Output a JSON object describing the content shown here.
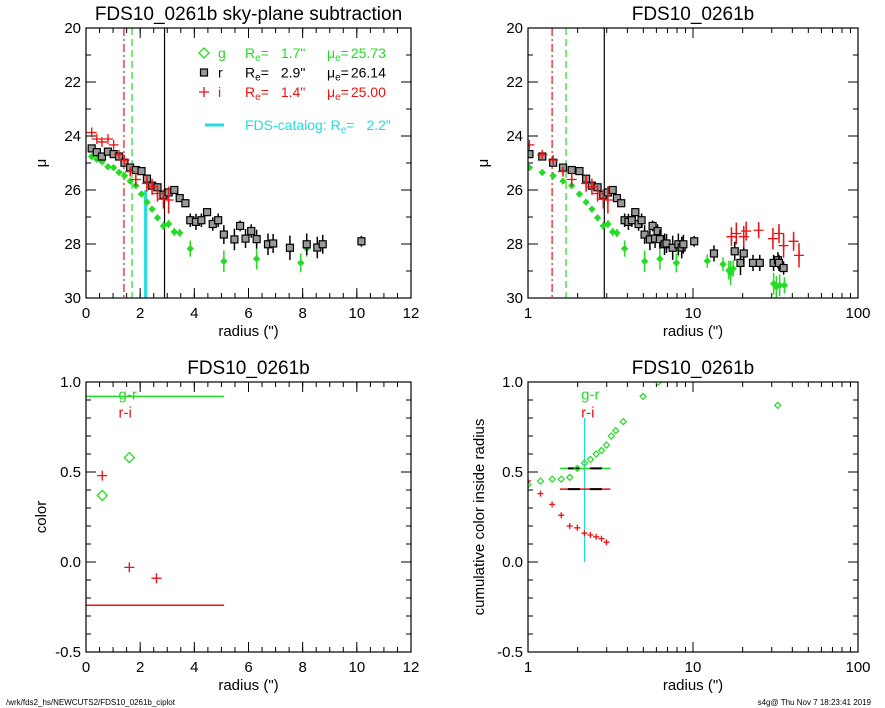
{
  "colors": {
    "g": "#22dd22",
    "r": "#000000",
    "i": "#ee1111",
    "catalog": "#22dddd"
  },
  "footer": {
    "left": "/wrk/fds2_hs/NEWCUTS2/FDS10_0261b_ciplot",
    "right": "s4g@  Thu Nov  7 18:23:41 2019"
  },
  "legend": {
    "re_symbol": "R",
    "mu_symbol": "μ",
    "sub": "e",
    "eq": "=",
    "entries": [
      {
        "band": "g",
        "symbol": "diamond",
        "re": "1.7\"",
        "mu": "25.73",
        "color": "#22dd22"
      },
      {
        "band": "r",
        "symbol": "square",
        "re": "2.9\"",
        "mu": "26.14",
        "color": "#000000"
      },
      {
        "band": "i",
        "symbol": "plus",
        "re": "1.4\"",
        "mu": "25.00",
        "color": "#ee1111"
      }
    ],
    "catalog_label": "FDS-catalog: R",
    "catalog_re": "2.2\""
  },
  "chart_data": [
    {
      "type": "scatter",
      "title": "FDS10_0261b sky-plane subtraction",
      "xlabel": "radius (\")",
      "ylabel": "μ",
      "xscale": "linear",
      "xlim": [
        0,
        12
      ],
      "xticks": [
        0,
        2,
        4,
        6,
        8,
        10,
        12
      ],
      "ylim": [
        20,
        30
      ],
      "y_reversed": true,
      "yticks": [
        20,
        22,
        24,
        26,
        28,
        30
      ],
      "series_ref": "profiles",
      "vlines": [
        {
          "x": 1.4,
          "color": "#ee1111",
          "style": "dashdot",
          "from": 20,
          "to": 30
        },
        {
          "x": 1.7,
          "color": "#22dd22",
          "style": "dashed",
          "from": 20,
          "to": 30
        },
        {
          "x": 2.9,
          "color": "#000000",
          "style": "solid",
          "from": 20,
          "to": 30
        },
        {
          "x": 2.2,
          "color": "#22dddd",
          "style": "thick",
          "from": 26.0,
          "to": 30
        }
      ],
      "legend": "top-right"
    },
    {
      "type": "scatter",
      "title": "FDS10_0261b",
      "xlabel": "radius (\")",
      "ylabel": "μ",
      "xscale": "log",
      "xlim": [
        1,
        100
      ],
      "xticks": [
        1,
        10,
        100
      ],
      "ylim": [
        20,
        30
      ],
      "y_reversed": true,
      "yticks": [
        20,
        22,
        24,
        26,
        28,
        30
      ],
      "series_ref": "profiles",
      "vlines": [
        {
          "x": 1.4,
          "color": "#ee1111",
          "style": "dashdot",
          "from": 20,
          "to": 30
        },
        {
          "x": 1.7,
          "color": "#22dd22",
          "style": "dashed",
          "from": 20,
          "to": 30
        },
        {
          "x": 2.9,
          "color": "#000000",
          "style": "solid",
          "from": 20,
          "to": 30
        }
      ]
    },
    {
      "type": "scatter",
      "title": "FDS10_0261b",
      "xlabel": "radius (\")",
      "ylabel": "color",
      "xscale": "linear",
      "xlim": [
        0,
        12
      ],
      "xticks": [
        0,
        2,
        4,
        6,
        8,
        10,
        12
      ],
      "ylim": [
        -0.5,
        1.0
      ],
      "y_reversed": false,
      "yticks": [
        "-0.5",
        "0.0",
        "0.5",
        "1.0"
      ],
      "series": [
        {
          "name": "g-r",
          "symbol": "diamond",
          "color": "#22dd22",
          "points": [
            [
              0.6,
              0.37
            ],
            [
              1.6,
              0.58
            ]
          ]
        },
        {
          "name": "r-i",
          "symbol": "plus",
          "color": "#ee1111",
          "points": [
            [
              0.6,
              0.48
            ],
            [
              1.6,
              -0.03
            ],
            [
              2.6,
              -0.09
            ]
          ]
        }
      ],
      "hlines": [
        {
          "y": 0.92,
          "x0": 0,
          "x1": 5.1,
          "color": "#22dd22"
        },
        {
          "y": -0.24,
          "x0": 0,
          "x1": 5.1,
          "color": "#ee1111"
        }
      ],
      "labels": [
        {
          "text": "g-r",
          "x": 1.2,
          "y": 0.93,
          "color": "#22dd22"
        },
        {
          "text": "r-i",
          "x": 1.2,
          "y": 0.83,
          "color": "#ee1111"
        }
      ]
    },
    {
      "type": "scatter",
      "title": "FDS10_0261b",
      "xlabel": "radius (\")",
      "ylabel": "cumulative color inside radius",
      "xscale": "log",
      "xlim": [
        1,
        100
      ],
      "xticks": [
        1,
        10,
        100
      ],
      "ylim": [
        -0.5,
        1.0
      ],
      "y_reversed": false,
      "yticks": [
        "-0.5",
        "0.0",
        "0.5",
        "1.0"
      ],
      "series": [
        {
          "name": "g-r",
          "symbol": "smalldiamond",
          "color": "#22dd22",
          "points": [
            [
              1.0,
              0.43
            ],
            [
              1.19,
              0.45
            ],
            [
              1.4,
              0.46
            ],
            [
              1.59,
              0.46
            ],
            [
              1.79,
              0.47
            ],
            [
              1.99,
              0.52
            ],
            [
              2.2,
              0.55
            ],
            [
              2.39,
              0.57
            ],
            [
              2.59,
              0.6
            ],
            [
              2.79,
              0.62
            ],
            [
              2.99,
              0.65
            ],
            [
              3.2,
              0.7
            ],
            [
              3.4,
              0.73
            ],
            [
              3.78,
              0.78
            ],
            [
              4.98,
              0.92
            ],
            [
              6.17,
              1.0
            ],
            [
              32.6,
              0.87
            ]
          ]
        },
        {
          "name": "r-i",
          "symbol": "smallplus",
          "color": "#ee1111",
          "points": [
            [
              1.0,
              0.45
            ],
            [
              1.19,
              0.38
            ],
            [
              1.4,
              0.32
            ],
            [
              1.59,
              0.26
            ],
            [
              1.79,
              0.2
            ],
            [
              1.99,
              0.19
            ],
            [
              2.2,
              0.16
            ],
            [
              2.39,
              0.15
            ],
            [
              2.59,
              0.14
            ],
            [
              2.79,
              0.13
            ],
            [
              2.99,
              0.11
            ]
          ]
        }
      ],
      "hlines": [
        {
          "y": 0.52,
          "x0": 1.56,
          "x1": 3.16,
          "color": "#22dd22",
          "dash_color": "#000000"
        },
        {
          "y": 0.405,
          "x0": 1.56,
          "x1": 3.16,
          "color": "#ee1111",
          "dash_color": "#000000"
        }
      ],
      "vlines": [
        {
          "x": 2.2,
          "color": "#22dddd",
          "style": "thin",
          "from": 0.0,
          "to": 0.8
        }
      ],
      "labels": [
        {
          "text": "g-r",
          "x": 2.1,
          "y": 0.93,
          "color": "#22dd22"
        },
        {
          "text": "r-i",
          "x": 2.1,
          "y": 0.83,
          "color": "#ee1111"
        }
      ]
    }
  ],
  "profiles": [
    {
      "band": "g",
      "symbol": "filldiamond",
      "color": "#22dd22",
      "points": [
        [
          0.21,
          24.76,
          0.05
        ],
        [
          0.4,
          24.86,
          0.05
        ],
        [
          0.59,
          24.95,
          0.05
        ],
        [
          0.81,
          25.14,
          0.05
        ],
        [
          1.02,
          25.17,
          0.05
        ],
        [
          1.22,
          25.35,
          0.05
        ],
        [
          1.42,
          25.47,
          0.06
        ],
        [
          1.63,
          25.67,
          0.08
        ],
        [
          1.84,
          25.84,
          0.1
        ],
        [
          2.05,
          26.15,
          0.1
        ],
        [
          2.25,
          26.45,
          0.1
        ],
        [
          2.44,
          26.71,
          0.1
        ],
        [
          2.64,
          27.03,
          0.12
        ],
        [
          2.86,
          27.33,
          0.15
        ],
        [
          3.05,
          27.26,
          0.15
        ],
        [
          3.26,
          27.55,
          0.15
        ],
        [
          3.46,
          27.59,
          0.15
        ],
        [
          3.85,
          28.17,
          0.3
        ],
        [
          5.09,
          28.64,
          0.4
        ],
        [
          6.3,
          28.55,
          0.4
        ],
        [
          7.93,
          28.7,
          0.35
        ],
        [
          8.15,
          28.17,
          0.3
        ],
        [
          12.2,
          28.63,
          0.25
        ],
        [
          15.2,
          28.75,
          0.25
        ],
        [
          16.5,
          28.97,
          0.35
        ],
        [
          16.9,
          29.07,
          0.45
        ],
        [
          17.5,
          28.91,
          0.3
        ],
        [
          30.8,
          29.47,
          0.4
        ],
        [
          32.0,
          29.59,
          0.4
        ],
        [
          33.5,
          29.53,
          0.4
        ],
        [
          35.8,
          29.53,
          0.3
        ]
      ]
    },
    {
      "band": "r",
      "symbol": "square",
      "color": "#000000",
      "points": [
        [
          0.21,
          24.46,
          0.05
        ],
        [
          0.4,
          24.6,
          0.05
        ],
        [
          0.59,
          24.76,
          0.05
        ],
        [
          0.81,
          24.58,
          0.05
        ],
        [
          1.02,
          24.67,
          0.05
        ],
        [
          1.22,
          24.76,
          0.05
        ],
        [
          1.42,
          24.99,
          0.06
        ],
        [
          1.63,
          25.17,
          0.08
        ],
        [
          1.84,
          25.26,
          0.08
        ],
        [
          2.05,
          25.3,
          0.1
        ],
        [
          2.25,
          25.58,
          0.12
        ],
        [
          2.44,
          25.84,
          0.12
        ],
        [
          2.64,
          25.9,
          0.15
        ],
        [
          2.86,
          26.18,
          0.2
        ],
        [
          3.05,
          26.09,
          0.15
        ],
        [
          3.26,
          26.0,
          0.1
        ],
        [
          3.46,
          26.3,
          0.12
        ],
        [
          3.67,
          26.49,
          0.12
        ],
        [
          3.85,
          27.12,
          0.25
        ],
        [
          4.06,
          27.18,
          0.3
        ],
        [
          4.26,
          27.12,
          0.25
        ],
        [
          4.47,
          26.82,
          0.15
        ],
        [
          4.68,
          27.26,
          0.25
        ],
        [
          4.88,
          27.12,
          0.25
        ],
        [
          5.09,
          27.65,
          0.35
        ],
        [
          5.48,
          27.83,
          0.4
        ],
        [
          5.69,
          27.33,
          0.2
        ],
        [
          5.89,
          27.8,
          0.35
        ],
        [
          6.1,
          27.52,
          0.25
        ],
        [
          6.3,
          27.82,
          0.35
        ],
        [
          6.72,
          28.01,
          0.4
        ],
        [
          6.91,
          27.98,
          0.35
        ],
        [
          7.53,
          28.14,
          0.45
        ],
        [
          8.15,
          28.01,
          0.4
        ],
        [
          8.54,
          28.13,
          0.4
        ],
        [
          8.74,
          28.01,
          0.35
        ],
        [
          10.17,
          27.9,
          0.2
        ],
        [
          13.4,
          28.35,
          0.3
        ],
        [
          17.9,
          28.27,
          0.35
        ],
        [
          19.4,
          28.7,
          0.45
        ],
        [
          20.3,
          28.35,
          0.4
        ],
        [
          23.1,
          28.7,
          0.3
        ],
        [
          25.4,
          28.7,
          0.3
        ],
        [
          30.8,
          28.7,
          0.3
        ],
        [
          32.7,
          28.6,
          0.3
        ],
        [
          33.2,
          28.7,
          0.3
        ],
        [
          35.4,
          28.89,
          0.25
        ]
      ]
    },
    {
      "band": "i",
      "symbol": "plus",
      "color": "#ee1111",
      "points": [
        [
          0.21,
          23.87,
          0.05
        ],
        [
          0.4,
          24.11,
          0.05
        ],
        [
          0.59,
          24.22,
          0.05
        ],
        [
          0.81,
          24.11,
          0.05
        ],
        [
          1.02,
          24.33,
          0.05
        ],
        [
          1.22,
          24.7,
          0.05
        ],
        [
          1.42,
          24.89,
          0.08
        ],
        [
          1.63,
          25.32,
          0.15
        ],
        [
          1.84,
          25.61,
          0.25
        ],
        [
          2.25,
          25.76,
          0.3
        ],
        [
          2.44,
          25.88,
          0.3
        ],
        [
          2.64,
          26.13,
          0.3
        ],
        [
          2.86,
          26.34,
          0.35
        ],
        [
          3.05,
          26.37,
          0.5
        ],
        [
          17.1,
          27.73,
          0.35
        ],
        [
          18.3,
          27.61,
          0.4
        ],
        [
          20.3,
          27.73,
          0.4
        ],
        [
          21.0,
          27.52,
          0.35
        ],
        [
          25.0,
          27.49,
          0.3
        ],
        [
          30.5,
          27.8,
          0.4
        ],
        [
          33.2,
          27.61,
          0.35
        ],
        [
          35.4,
          28.06,
          0.45
        ],
        [
          40.7,
          27.9,
          0.35
        ],
        [
          43.9,
          28.42,
          0.45
        ]
      ]
    }
  ]
}
